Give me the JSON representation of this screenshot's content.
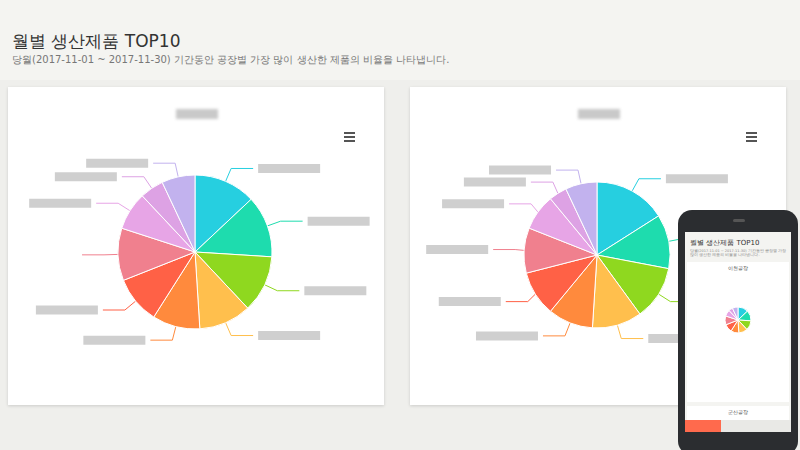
{
  "page": {
    "title": "월별 생산제품 TOP10",
    "subtitle": "당월(2017-11-01 ~ 2017-11-30) 기간동안 공장별 가장 많이 생산한 제품의 비율을 나타냅니다."
  },
  "mobile": {
    "sections": [
      "이천공장",
      "군산공장"
    ]
  },
  "chart_data": [
    {
      "type": "pie",
      "categories": [
        null,
        null,
        null,
        null,
        null,
        null,
        null,
        null,
        null,
        null
      ],
      "values": [
        13,
        13,
        12,
        11,
        10,
        10,
        11,
        8,
        5,
        7
      ],
      "colors": [
        "#26cfe0",
        "#1edcae",
        "#8fd81f",
        "#ffbf4d",
        "#ff8a3d",
        "#ff6146",
        "#f0808e",
        "#e7a5e6",
        "#dda2e4",
        "#c2b2ee"
      ]
    },
    {
      "type": "pie",
      "categories": [
        null,
        null,
        null,
        null,
        null,
        null,
        null,
        null,
        null,
        null
      ],
      "values": [
        16,
        12,
        12,
        11,
        10,
        10,
        10,
        8,
        4,
        7
      ],
      "colors": [
        "#26cfe0",
        "#1edcae",
        "#8fd81f",
        "#ffbf4d",
        "#ff8a3d",
        "#ff6146",
        "#f0808e",
        "#e7a5e6",
        "#dda2e4",
        "#c2b2ee"
      ]
    }
  ]
}
